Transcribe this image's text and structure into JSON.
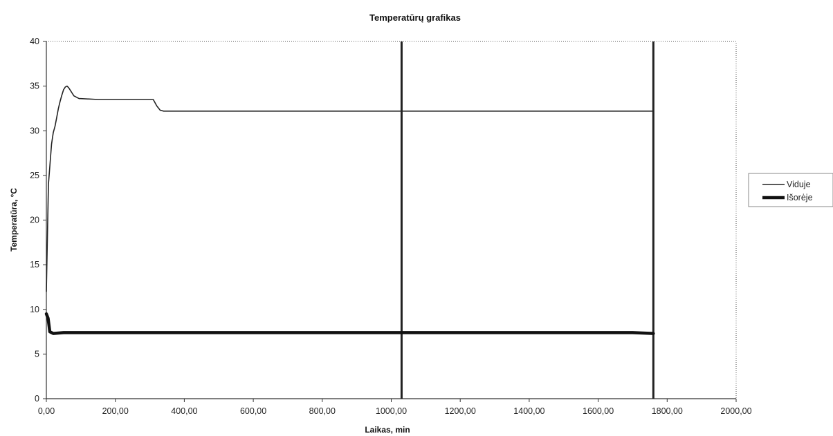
{
  "chart_data": {
    "type": "line",
    "title": "Temperatūrų grafikas",
    "xlabel": "Laikas, min",
    "ylabel": "Temperatūra, °C",
    "xlim": [
      0,
      2000
    ],
    "ylim": [
      0,
      40
    ],
    "x_ticks": [
      0,
      200,
      400,
      600,
      800,
      1000,
      1200,
      1400,
      1600,
      1800,
      2000
    ],
    "x_tick_labels": [
      "0,00",
      "200,00",
      "400,00",
      "600,00",
      "800,00",
      "1000,00",
      "1200,00",
      "1400,00",
      "1600,00",
      "1800,00",
      "2000,00"
    ],
    "y_ticks": [
      0,
      5,
      10,
      15,
      20,
      25,
      30,
      35,
      40
    ],
    "y_tick_labels": [
      "0",
      "5",
      "10",
      "15",
      "20",
      "25",
      "30",
      "35",
      "40"
    ],
    "grid": false,
    "legend_position": "right",
    "vertical_markers": [
      {
        "x": 1030,
        "color": "#222222"
      },
      {
        "x": 1760,
        "color": "#222222"
      }
    ],
    "series": [
      {
        "name": "Viduje",
        "color": "#222222",
        "style": "thin",
        "x": [
          0,
          3,
          6,
          10,
          15,
          20,
          25,
          30,
          35,
          40,
          45,
          50,
          55,
          60,
          65,
          70,
          75,
          80,
          85,
          90,
          95,
          100,
          150,
          200,
          250,
          300,
          310,
          320,
          330,
          340,
          350,
          400,
          500,
          600,
          700,
          800,
          900,
          1000,
          1100,
          1200,
          1300,
          1400,
          1500,
          1600,
          1700,
          1760
        ],
        "y": [
          12,
          18,
          24,
          26,
          28.5,
          29.8,
          30.5,
          31.5,
          32.5,
          33.3,
          34.0,
          34.6,
          34.9,
          35.0,
          34.8,
          34.5,
          34.2,
          33.9,
          33.8,
          33.7,
          33.6,
          33.6,
          33.5,
          33.5,
          33.5,
          33.5,
          33.5,
          32.8,
          32.3,
          32.2,
          32.2,
          32.2,
          32.2,
          32.2,
          32.2,
          32.2,
          32.2,
          32.2,
          32.2,
          32.2,
          32.2,
          32.2,
          32.2,
          32.2,
          32.2,
          32.2
        ]
      },
      {
        "name": "Išorėje",
        "color": "#111111",
        "style": "thick",
        "x": [
          0,
          5,
          10,
          20,
          50,
          100,
          200,
          300,
          400,
          500,
          600,
          700,
          800,
          900,
          1000,
          1100,
          1200,
          1300,
          1400,
          1500,
          1600,
          1700,
          1760
        ],
        "y": [
          9.5,
          9.0,
          7.5,
          7.3,
          7.4,
          7.4,
          7.4,
          7.4,
          7.4,
          7.4,
          7.4,
          7.4,
          7.4,
          7.4,
          7.4,
          7.4,
          7.4,
          7.4,
          7.4,
          7.4,
          7.4,
          7.4,
          7.3
        ]
      }
    ]
  }
}
